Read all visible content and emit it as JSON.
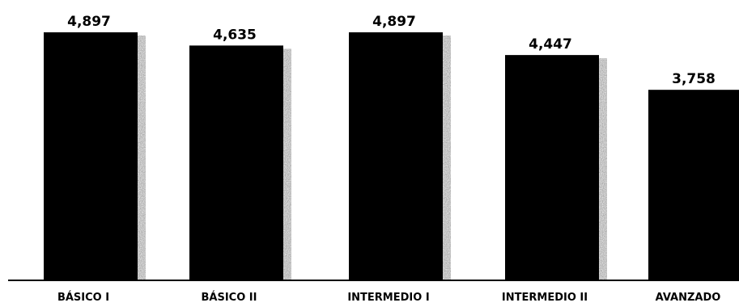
{
  "chart_data": {
    "type": "bar",
    "title": "",
    "xlabel": "",
    "ylabel": "",
    "categories": [
      "BÁSICO I",
      "BÁSICO II",
      "INTERMEDIO I",
      "INTERMEDIO II",
      "AVANZADO"
    ],
    "values": [
      4.897,
      4.635,
      4.897,
      4.447,
      3.758
    ],
    "value_labels": [
      "4,897",
      "4,635",
      "4,897",
      "4,447",
      "3,758"
    ],
    "ylim": [
      0,
      5.0
    ],
    "grid": false,
    "legend": "none",
    "colors": {
      "bar": "#000000",
      "shadow": "#8c8c8c",
      "axis": "#000000"
    }
  }
}
